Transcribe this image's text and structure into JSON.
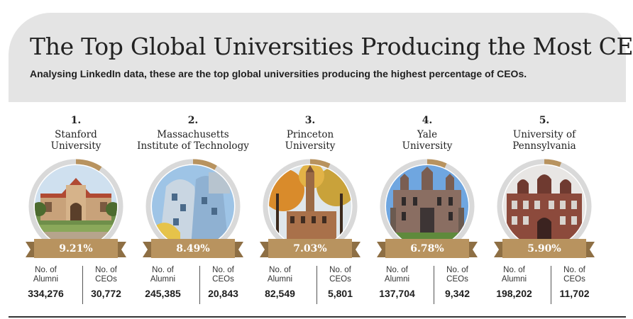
{
  "header": {
    "title": "The Top Global Universities Producing the Most CEOs",
    "subtitle": "Analysing LinkedIn data, these are the top global universities producing the highest percentage of CEOs."
  },
  "colors": {
    "header_bg": "#e4e4e4",
    "ring_track": "#d9d9d9",
    "ring_accent": "#b8935f",
    "ribbon": "#b8935f",
    "ribbon_fold": "#8e6f44"
  },
  "stat_labels": {
    "alumni": "No. of\nAlumni",
    "ceos": "No. of\nCEOs"
  },
  "universities": [
    {
      "rank": "1.",
      "name": "Stanford\nUniversity",
      "percentage": "9.21%",
      "percentage_value": 9.21,
      "alumni": "334,276",
      "ceos": "30,772"
    },
    {
      "rank": "2.",
      "name": "Massachusetts\nInstitute of Technology",
      "percentage": "8.49%",
      "percentage_value": 8.49,
      "alumni": "245,385",
      "ceos": "20,843"
    },
    {
      "rank": "3.",
      "name": "Princeton\nUniversity",
      "percentage": "7.03%",
      "percentage_value": 7.03,
      "alumni": "82,549",
      "ceos": "5,801"
    },
    {
      "rank": "4.",
      "name": "Yale\nUniversity",
      "percentage": "6.78%",
      "percentage_value": 6.78,
      "alumni": "137,704",
      "ceos": "9,342"
    },
    {
      "rank": "5.",
      "name": "University of\nPennsylvania",
      "percentage": "5.90%",
      "percentage_value": 5.9,
      "alumni": "198,202",
      "ceos": "11,702"
    }
  ]
}
